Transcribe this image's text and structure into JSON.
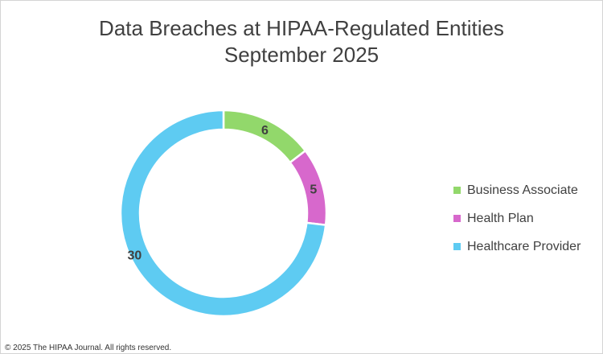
{
  "title_line1": "Data Breaches at HIPAA-Regulated Entities",
  "title_line2": "September 2025",
  "footer": "© 2025 The HIPAA Journal. All rights reserved.",
  "chart_data": {
    "type": "pie",
    "variant": "donut",
    "title": "Data Breaches at HIPAA-Regulated Entities September 2025",
    "categories": [
      "Business Associate",
      "Health Plan",
      "Healthcare Provider"
    ],
    "values": [
      6,
      5,
      30
    ],
    "colors": [
      "#92d86b",
      "#d768cc",
      "#5ecbf2"
    ],
    "data_labels": [
      "6",
      "5",
      "30"
    ],
    "legend": "right"
  },
  "legend": {
    "items": [
      {
        "label": "Business Associate",
        "color": "#92d86b"
      },
      {
        "label": "Health Plan",
        "color": "#d768cc"
      },
      {
        "label": "Healthcare Provider",
        "color": "#5ecbf2"
      }
    ]
  }
}
